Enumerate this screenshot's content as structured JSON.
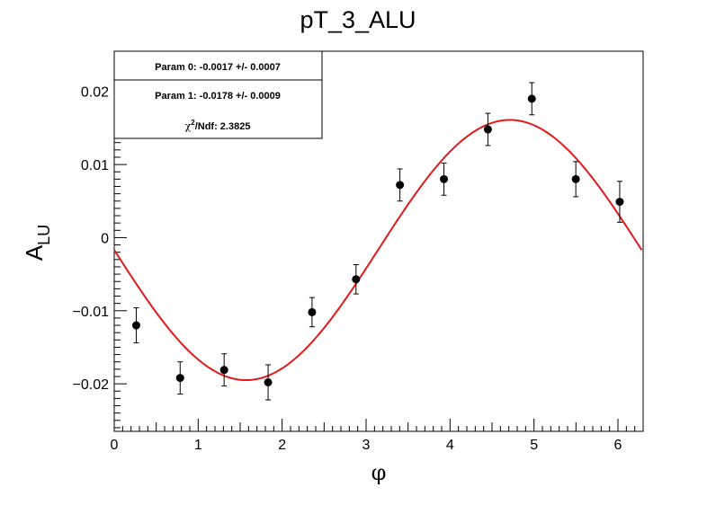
{
  "chart_data": {
    "type": "scatter",
    "title": "pT_3_ALU",
    "xlabel": "φ",
    "ylabel_main": "A",
    "ylabel_sub": "LU",
    "xlim": [
      0,
      6.3
    ],
    "ylim": [
      -0.0265,
      0.0255
    ],
    "x_ticks": [
      0,
      1,
      2,
      3,
      4,
      5,
      6
    ],
    "x_tick_labels": [
      "0",
      "1",
      "2",
      "3",
      "4",
      "5",
      "6"
    ],
    "y_ticks": [
      -0.02,
      -0.01,
      0,
      0.01,
      0.02
    ],
    "y_tick_labels": [
      "−0.02",
      "−0.01",
      "0",
      "0.01",
      "0.02"
    ],
    "grid": false,
    "series": [
      {
        "marker": "circle",
        "color": "#000000",
        "x": [
          0.262,
          0.785,
          1.309,
          1.833,
          2.356,
          2.88,
          3.403,
          3.927,
          4.451,
          4.974,
          5.498,
          6.021
        ],
        "y": [
          -0.012,
          -0.0192,
          -0.0181,
          -0.0198,
          -0.0102,
          -0.0057,
          0.0072,
          0.008,
          0.0148,
          0.019,
          0.008,
          0.0049
        ],
        "err": [
          0.0024,
          0.0022,
          0.0022,
          0.0024,
          0.002,
          0.002,
          0.0022,
          0.0022,
          0.0022,
          0.0022,
          0.0024,
          0.0028
        ]
      }
    ],
    "fit": {
      "color": "#e31a1c",
      "p0": -0.0017,
      "p1": -0.0178,
      "x_range": [
        0,
        6.283
      ]
    },
    "stats_box": {
      "param0": "Param 0: -0.0017 +/- 0.0007",
      "param1": "Param 1: -0.0178 +/- 0.0009",
      "chi2_label": "χ",
      "chi2_sup": "2",
      "chi2_rest": "/Ndf: 2.3825"
    }
  }
}
